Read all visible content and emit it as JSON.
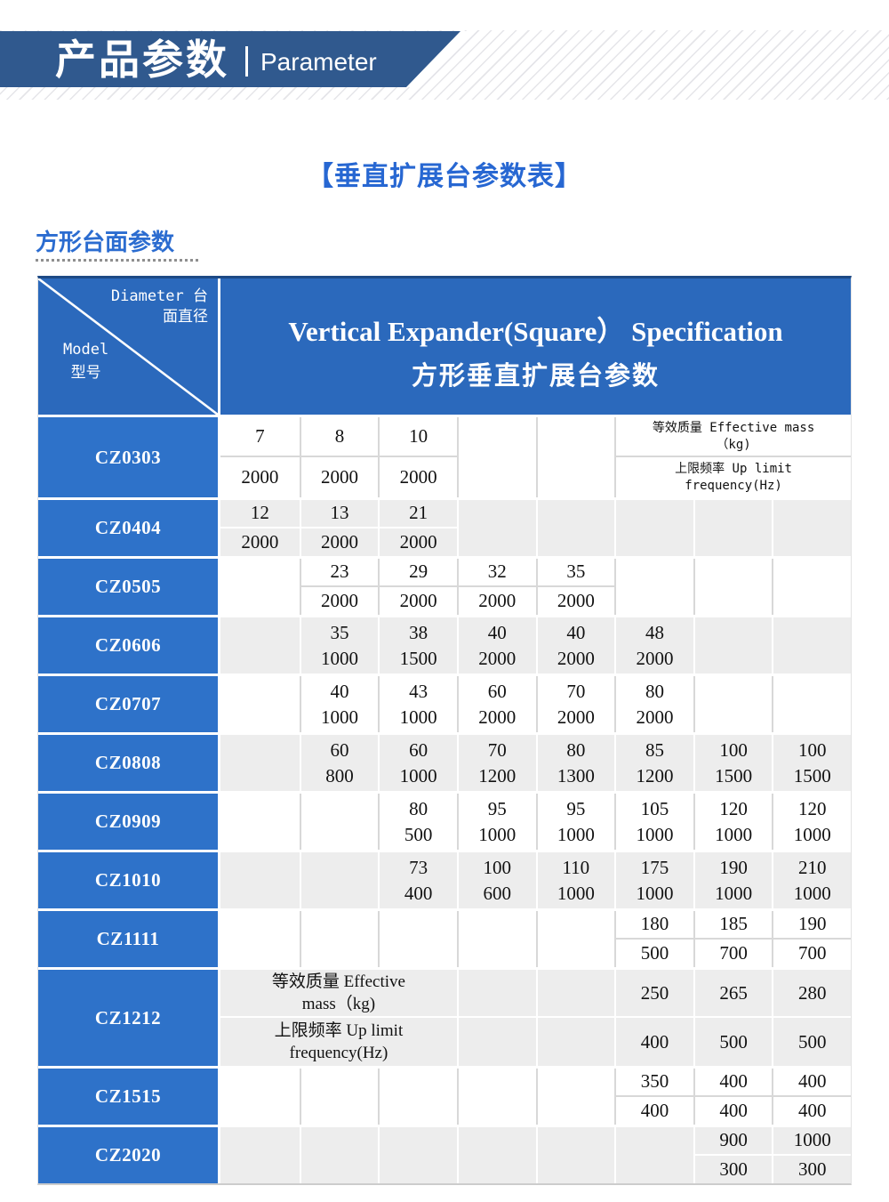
{
  "banner": {
    "title_cn": "产品参数",
    "divider": "|",
    "title_en": "Parameter"
  },
  "page_title": "【垂直扩展台参数表】",
  "section": {
    "label": "方形台面参数"
  },
  "colors": {
    "banner_navy": "#30598e",
    "header_blue": "#2b69bc",
    "model_blue": "#2e72c9",
    "title_blue": "#2767d2",
    "row_alt_gray": "#ededed",
    "grid_line_on_white": "#d8d8d8",
    "grid_line_on_gray": "#ffffff",
    "table_top_border": "#1d4a85"
  },
  "table": {
    "corner": {
      "diameter_line1": "Diameter 台",
      "diameter_line2": "面直径",
      "model_line1": "Model",
      "model_line2": "型号"
    },
    "header": {
      "title_en": "Vertical Expander(Square） Specification",
      "title_cn": "方形垂直扩展台参数"
    },
    "metric_legend": {
      "effective_mass": "等效质量 Effective mass（kg)",
      "up_limit_frequency": "上限频率 Up limit frequency(Hz)"
    },
    "rows": [
      {
        "model": "CZ0303",
        "shade": "light",
        "columns": [
          {
            "type": "pair",
            "top": "7",
            "bottom": "2000"
          },
          {
            "type": "pair",
            "top": "8",
            "bottom": "2000"
          },
          {
            "type": "pair",
            "top": "10",
            "bottom": "2000"
          },
          {
            "type": "empty"
          },
          {
            "type": "empty"
          },
          {
            "type": "label",
            "span": 3,
            "variant": "small",
            "top_lines": [
              "等效质量 Effective mass",
              "（kg)"
            ],
            "bottom_lines": [
              "上限频率 Up limit",
              "frequency(Hz)"
            ]
          }
        ]
      },
      {
        "model": "CZ0404",
        "shade": "gray",
        "columns": [
          {
            "type": "pair",
            "top": "12",
            "bottom": "2000"
          },
          {
            "type": "pair",
            "top": "13",
            "bottom": "2000"
          },
          {
            "type": "pair",
            "top": "21",
            "bottom": "2000"
          },
          {
            "type": "empty"
          },
          {
            "type": "empty"
          },
          {
            "type": "empty"
          },
          {
            "type": "empty"
          },
          {
            "type": "empty"
          }
        ]
      },
      {
        "model": "CZ0505",
        "shade": "light",
        "columns": [
          {
            "type": "empty"
          },
          {
            "type": "pair",
            "top": "23",
            "bottom": "2000"
          },
          {
            "type": "pair",
            "top": "29",
            "bottom": "2000"
          },
          {
            "type": "pair",
            "top": "32",
            "bottom": "2000"
          },
          {
            "type": "pair",
            "top": "35",
            "bottom": "2000"
          },
          {
            "type": "empty"
          },
          {
            "type": "empty"
          },
          {
            "type": "empty"
          }
        ]
      },
      {
        "model": "CZ0606",
        "shade": "gray",
        "columns": [
          {
            "type": "empty"
          },
          {
            "type": "stack",
            "top": "35",
            "bottom": "1000"
          },
          {
            "type": "stack",
            "top": "38",
            "bottom": "1500"
          },
          {
            "type": "stack",
            "top": "40",
            "bottom": "2000"
          },
          {
            "type": "stack",
            "top": "40",
            "bottom": "2000"
          },
          {
            "type": "stack",
            "top": "48",
            "bottom": "2000"
          },
          {
            "type": "empty"
          },
          {
            "type": "empty"
          }
        ]
      },
      {
        "model": "CZ0707",
        "shade": "light",
        "columns": [
          {
            "type": "empty"
          },
          {
            "type": "stack",
            "top": "40",
            "bottom": "1000"
          },
          {
            "type": "stack",
            "top": "43",
            "bottom": "1000"
          },
          {
            "type": "stack",
            "top": "60",
            "bottom": "2000"
          },
          {
            "type": "stack",
            "top": "70",
            "bottom": "2000"
          },
          {
            "type": "stack",
            "top": "80",
            "bottom": "2000"
          },
          {
            "type": "empty"
          },
          {
            "type": "empty"
          }
        ]
      },
      {
        "model": "CZ0808",
        "shade": "gray",
        "columns": [
          {
            "type": "empty"
          },
          {
            "type": "stack",
            "top": "60",
            "bottom": "800"
          },
          {
            "type": "stack",
            "top": "60",
            "bottom": "1000"
          },
          {
            "type": "stack",
            "top": "70",
            "bottom": "1200"
          },
          {
            "type": "stack",
            "top": "80",
            "bottom": "1300"
          },
          {
            "type": "stack",
            "top": "85",
            "bottom": "1200"
          },
          {
            "type": "stack",
            "top": "100",
            "bottom": "1500"
          },
          {
            "type": "stack",
            "top": "100",
            "bottom": "1500"
          }
        ]
      },
      {
        "model": "CZ0909",
        "shade": "light",
        "columns": [
          {
            "type": "empty"
          },
          {
            "type": "empty"
          },
          {
            "type": "stack",
            "top": "80",
            "bottom": "500"
          },
          {
            "type": "stack",
            "top": "95",
            "bottom": "1000"
          },
          {
            "type": "stack",
            "top": "95",
            "bottom": "1000"
          },
          {
            "type": "stack",
            "top": "105",
            "bottom": "1000"
          },
          {
            "type": "stack",
            "top": "120",
            "bottom": "1000"
          },
          {
            "type": "stack",
            "top": "120",
            "bottom": "1000"
          }
        ]
      },
      {
        "model": "CZ1010",
        "shade": "gray",
        "columns": [
          {
            "type": "empty"
          },
          {
            "type": "empty"
          },
          {
            "type": "stack",
            "top": "73",
            "bottom": "400"
          },
          {
            "type": "stack",
            "top": "100",
            "bottom": "600"
          },
          {
            "type": "stack",
            "top": "110",
            "bottom": "1000"
          },
          {
            "type": "stack",
            "top": "175",
            "bottom": "1000"
          },
          {
            "type": "stack",
            "top": "190",
            "bottom": "1000"
          },
          {
            "type": "stack",
            "top": "210",
            "bottom": "1000"
          }
        ]
      },
      {
        "model": "CZ1111",
        "shade": "light",
        "columns": [
          {
            "type": "empty"
          },
          {
            "type": "empty"
          },
          {
            "type": "empty"
          },
          {
            "type": "empty"
          },
          {
            "type": "empty"
          },
          {
            "type": "pair",
            "top": "180",
            "bottom": "500"
          },
          {
            "type": "pair",
            "top": "185",
            "bottom": "700"
          },
          {
            "type": "pair",
            "top": "190",
            "bottom": "700"
          }
        ]
      },
      {
        "model": "CZ1212",
        "shade": "gray",
        "columns": [
          {
            "type": "label",
            "span": 3,
            "variant": "large",
            "top_lines": [
              "等效质量 Effective",
              "mass（kg)"
            ],
            "bottom_lines": [
              "上限频率 Up limit",
              "frequency(Hz)"
            ]
          },
          {
            "type": "pair",
            "top": "",
            "bottom": ""
          },
          {
            "type": "pair",
            "top": "",
            "bottom": ""
          },
          {
            "type": "pair",
            "top": "250",
            "bottom": "400"
          },
          {
            "type": "pair",
            "top": "265",
            "bottom": "500"
          },
          {
            "type": "pair",
            "top": "280",
            "bottom": "500"
          }
        ]
      },
      {
        "model": "CZ1515",
        "shade": "light",
        "columns": [
          {
            "type": "empty"
          },
          {
            "type": "empty"
          },
          {
            "type": "empty"
          },
          {
            "type": "empty"
          },
          {
            "type": "empty"
          },
          {
            "type": "pair",
            "top": "350",
            "bottom": "400"
          },
          {
            "type": "pair",
            "top": "400",
            "bottom": "400"
          },
          {
            "type": "pair",
            "top": "400",
            "bottom": "400"
          }
        ]
      },
      {
        "model": "CZ2020",
        "shade": "gray",
        "columns": [
          {
            "type": "empty"
          },
          {
            "type": "empty"
          },
          {
            "type": "empty"
          },
          {
            "type": "empty"
          },
          {
            "type": "empty"
          },
          {
            "type": "empty"
          },
          {
            "type": "pair",
            "top": "900",
            "bottom": "300"
          },
          {
            "type": "pair",
            "top": "1000",
            "bottom": "300"
          }
        ]
      }
    ]
  }
}
